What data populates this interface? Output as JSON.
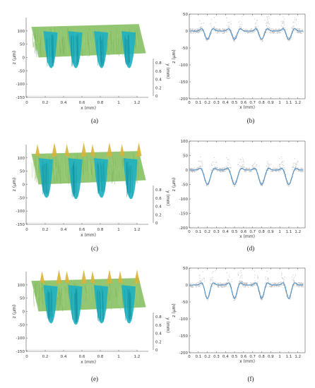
{
  "panel_labels": [
    "(a)",
    "(b)",
    "(c)",
    "(d)",
    "(e)",
    "(f)"
  ],
  "colors": {
    "surface": "#8cc36a",
    "valley": "#1fb1c1",
    "peak": "#d9b23a",
    "trace": "#b4b4b4",
    "mean": "#4a8cc4"
  },
  "chart_data": [
    {
      "id": "a",
      "type": "area",
      "view": "3d-surface",
      "xlabel": "x (mm)",
      "ylabel": "z (μm)",
      "zlabel": "y (mm)",
      "xlim": [
        0,
        1.3
      ],
      "ylim": [
        -150,
        150
      ],
      "zlim": [
        0,
        0.9
      ],
      "xticks": [
        "0",
        "0.2",
        "0.4",
        "0.6",
        "0.8",
        "1",
        "1.2"
      ],
      "yticks": [
        "100",
        "50",
        "0",
        "-50",
        "-100",
        "-150"
      ],
      "zticks": [
        "0.8",
        "0.6",
        "0.4",
        "0.2",
        "0"
      ],
      "groove_centers_mm": [
        0.25,
        0.52,
        0.8,
        1.1
      ],
      "plateau_um": 60,
      "groove_depth_um": [
        -40,
        -40,
        -40,
        -40
      ]
    },
    {
      "id": "b",
      "type": "line",
      "view": "profile",
      "xlabel": "x (mm)",
      "ylabel": "z (μm)",
      "xlim": [
        0,
        1.28
      ],
      "ylim": [
        -200,
        50
      ],
      "xticks": [
        "0",
        "0.1",
        "0.2",
        "0.3",
        "0.4",
        "0.5",
        "0.6",
        "0.7",
        "0.8",
        "0.9",
        "1",
        "1.1",
        "1.2"
      ],
      "yticks": [
        "50",
        "0",
        "-50",
        "-100",
        "-150",
        "-200"
      ],
      "groove_centers_mm": [
        0.2,
        0.5,
        0.8,
        1.1
      ],
      "groove_depth_um": -25,
      "groove_width_mm": 0.05
    },
    {
      "id": "c",
      "type": "area",
      "view": "3d-surface",
      "xlabel": "x (mm)",
      "ylabel": "z (μm)",
      "zlabel": "y (mm)",
      "xlim": [
        0,
        1.3
      ],
      "ylim": [
        -150,
        150
      ],
      "zlim": [
        0,
        0.9
      ],
      "xticks": [
        "0",
        "0.2",
        "0.4",
        "0.6",
        "0.8",
        "1",
        "1.2"
      ],
      "yticks": [
        "100",
        "50",
        "0",
        "-50",
        "-100",
        "-150"
      ],
      "zticks": [
        "0.8",
        "0.6",
        "0.4",
        "0.2",
        "0"
      ],
      "groove_centers_mm": [
        0.2,
        0.52,
        0.8,
        1.12
      ],
      "plateau_um": 60,
      "groove_depth_um": [
        -50,
        -55,
        -50,
        -55
      ]
    },
    {
      "id": "d",
      "type": "line",
      "view": "profile",
      "xlabel": "x (mm)",
      "ylabel": "z (μm)",
      "xlim": [
        0,
        1.28
      ],
      "ylim": [
        -200,
        100
      ],
      "xticks": [
        "0",
        "0.1",
        "0.2",
        "0.3",
        "0.4",
        "0.5",
        "0.6",
        "0.7",
        "0.8",
        "0.9",
        "1",
        "1.1",
        "1.2"
      ],
      "yticks": [
        "100",
        "50",
        "0",
        "-50",
        "-100",
        "-150",
        "-200"
      ],
      "groove_centers_mm": [
        0.2,
        0.5,
        0.8,
        1.1
      ],
      "groove_depth_um": -50,
      "groove_width_mm": 0.06
    },
    {
      "id": "e",
      "type": "area",
      "view": "3d-surface",
      "xlabel": "x (mm)",
      "ylabel": "z (μm)",
      "zlabel": "y (mm)",
      "xlim": [
        0,
        1.3
      ],
      "ylim": [
        -150,
        150
      ],
      "zlim": [
        0,
        0.9
      ],
      "xticks": [
        "0",
        "0.2",
        "0.4",
        "0.6",
        "0.8",
        "1",
        "1.2"
      ],
      "yticks": [
        "100",
        "50",
        "0",
        "-50",
        "-100",
        "-150"
      ],
      "zticks": [
        "0.8",
        "0.6",
        "0.4",
        "0.2",
        "0"
      ],
      "groove_centers_mm": [
        0.25,
        0.52,
        0.8,
        1.1
      ],
      "plateau_um": 60,
      "groove_depth_um": [
        -45,
        -50,
        -45,
        -45
      ]
    },
    {
      "id": "f",
      "type": "line",
      "view": "profile",
      "xlabel": "x (mm)",
      "ylabel": "z (μm)",
      "xlim": [
        0,
        1.28
      ],
      "ylim": [
        -200,
        50
      ],
      "xticks": [
        "0",
        "0.1",
        "0.2",
        "0.3",
        "0.4",
        "0.5",
        "0.6",
        "0.7",
        "0.8",
        "0.9",
        "1",
        "1.1",
        "1.2"
      ],
      "yticks": [
        "50",
        "0",
        "-50",
        "-100",
        "-150",
        "-200"
      ],
      "groove_centers_mm": [
        0.2,
        0.5,
        0.8,
        1.1
      ],
      "groove_depth_um": -40,
      "groove_width_mm": 0.05
    }
  ]
}
